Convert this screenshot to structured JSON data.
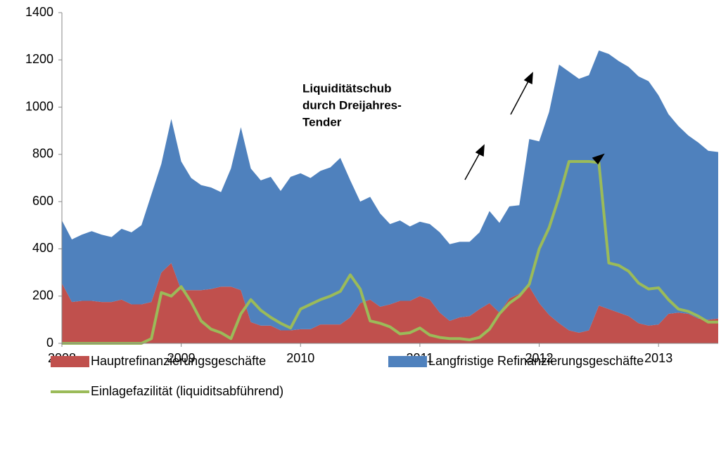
{
  "chart_data": {
    "type": "area",
    "annotation": [
      "Liquiditätschub",
      "durch Dreijahres-",
      "Tender"
    ],
    "x": [
      2008,
      2008.0833,
      2008.1667,
      2008.25,
      2008.3333,
      2008.4167,
      2008.5,
      2008.5833,
      2008.6667,
      2008.75,
      2008.8333,
      2008.9167,
      2009,
      2009.0833,
      2009.1667,
      2009.25,
      2009.3333,
      2009.4167,
      2009.5,
      2009.5833,
      2009.6667,
      2009.75,
      2009.8333,
      2009.9167,
      2010,
      2010.0833,
      2010.1667,
      2010.25,
      2010.3333,
      2010.4167,
      2010.5,
      2010.5833,
      2010.6667,
      2010.75,
      2010.8333,
      2010.9167,
      2011,
      2011.0833,
      2011.1667,
      2011.25,
      2011.3333,
      2011.4167,
      2011.5,
      2011.5833,
      2011.6667,
      2011.75,
      2011.8333,
      2011.9167,
      2012,
      2012.0833,
      2012.1667,
      2012.25,
      2012.3333,
      2012.4167,
      2012.5,
      2012.5833,
      2012.6667,
      2012.75,
      2012.8333,
      2012.9167,
      2013,
      2013.0833,
      2013.1667,
      2013.25,
      2013.3333,
      2013.4167,
      2013.5
    ],
    "series": [
      {
        "name": "Hauptrefinanzierungsgeschäfte",
        "type": "area",
        "stacked": true,
        "color": "#c0504d",
        "values": [
          255,
          175,
          180,
          180,
          175,
          175,
          185,
          165,
          165,
          175,
          300,
          340,
          225,
          225,
          225,
          230,
          240,
          240,
          225,
          90,
          75,
          75,
          55,
          55,
          60,
          60,
          80,
          80,
          80,
          110,
          170,
          185,
          155,
          165,
          180,
          180,
          200,
          185,
          130,
          95,
          110,
          115,
          145,
          170,
          130,
          190,
          210,
          240,
          170,
          120,
          85,
          55,
          45,
          55,
          160,
          145,
          130,
          115,
          85,
          75,
          80,
          125,
          130,
          125,
          105,
          100,
          105
        ]
      },
      {
        "name": "Langfristige Refinanzierungsgeschäfte",
        "type": "area",
        "stacked": true,
        "color": "#4f81bd",
        "values": [
          265,
          265,
          280,
          295,
          285,
          275,
          300,
          305,
          335,
          455,
          460,
          610,
          545,
          475,
          445,
          430,
          400,
          500,
          690,
          650,
          615,
          630,
          590,
          650,
          660,
          640,
          650,
          665,
          705,
          580,
          430,
          435,
          395,
          340,
          340,
          315,
          315,
          320,
          340,
          325,
          320,
          315,
          325,
          390,
          380,
          390,
          375,
          625,
          685,
          860,
          1095,
          1095,
          1075,
          1080,
          1080,
          1080,
          1065,
          1055,
          1045,
          1035,
          970,
          845,
          790,
          755,
          745,
          715,
          705
        ]
      },
      {
        "name": "Einlagefazilität (liquiditsabführend)",
        "type": "line",
        "stacked": false,
        "color": "#9bbb59",
        "values": [
          0,
          0,
          0,
          0,
          0,
          0,
          0,
          0,
          0,
          20,
          215,
          200,
          240,
          175,
          95,
          60,
          45,
          20,
          125,
          185,
          140,
          110,
          85,
          65,
          145,
          165,
          185,
          200,
          220,
          290,
          230,
          95,
          85,
          70,
          40,
          45,
          65,
          35,
          25,
          20,
          20,
          15,
          25,
          60,
          125,
          170,
          200,
          250,
          400,
          490,
          620,
          770,
          770,
          770,
          765,
          340,
          330,
          305,
          255,
          230,
          235,
          185,
          145,
          135,
          115,
          90,
          90
        ]
      }
    ],
    "xlim": [
      2008,
      2013.5
    ],
    "xticks": [
      2008,
      2009,
      2010,
      2011,
      2012,
      2013
    ],
    "ylim": [
      0,
      1400
    ],
    "yticks": [
      0,
      200,
      400,
      600,
      800,
      1000,
      1200,
      1400
    ],
    "grid": false
  }
}
